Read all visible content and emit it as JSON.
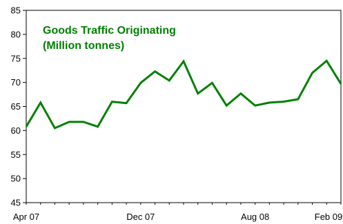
{
  "chart_data": {
    "type": "line",
    "title_lines": [
      "Goods Traffic Originating",
      "(Million tonnes)"
    ],
    "title_color": "#008000",
    "series": [
      {
        "color": "#008000",
        "values": [
          60.8,
          65.8,
          60.5,
          61.8,
          61.8,
          60.8,
          66.0,
          65.7,
          69.9,
          72.3,
          70.4,
          74.4,
          67.7,
          69.9,
          65.2,
          67.7,
          65.2,
          65.8,
          66.0,
          66.5,
          72.0,
          74.5,
          69.7
        ]
      }
    ],
    "x_labels": [
      {
        "index": 0,
        "label": "Apr 07"
      },
      {
        "index": 8,
        "label": "Dec 07"
      },
      {
        "index": 16,
        "label": "Aug 08"
      },
      {
        "index": 22,
        "label": "Feb 09"
      }
    ],
    "ylim": [
      45,
      85
    ],
    "yticks": [
      45,
      50,
      55,
      60,
      65,
      70,
      75,
      80,
      85
    ],
    "grid": false,
    "legend": "none"
  }
}
